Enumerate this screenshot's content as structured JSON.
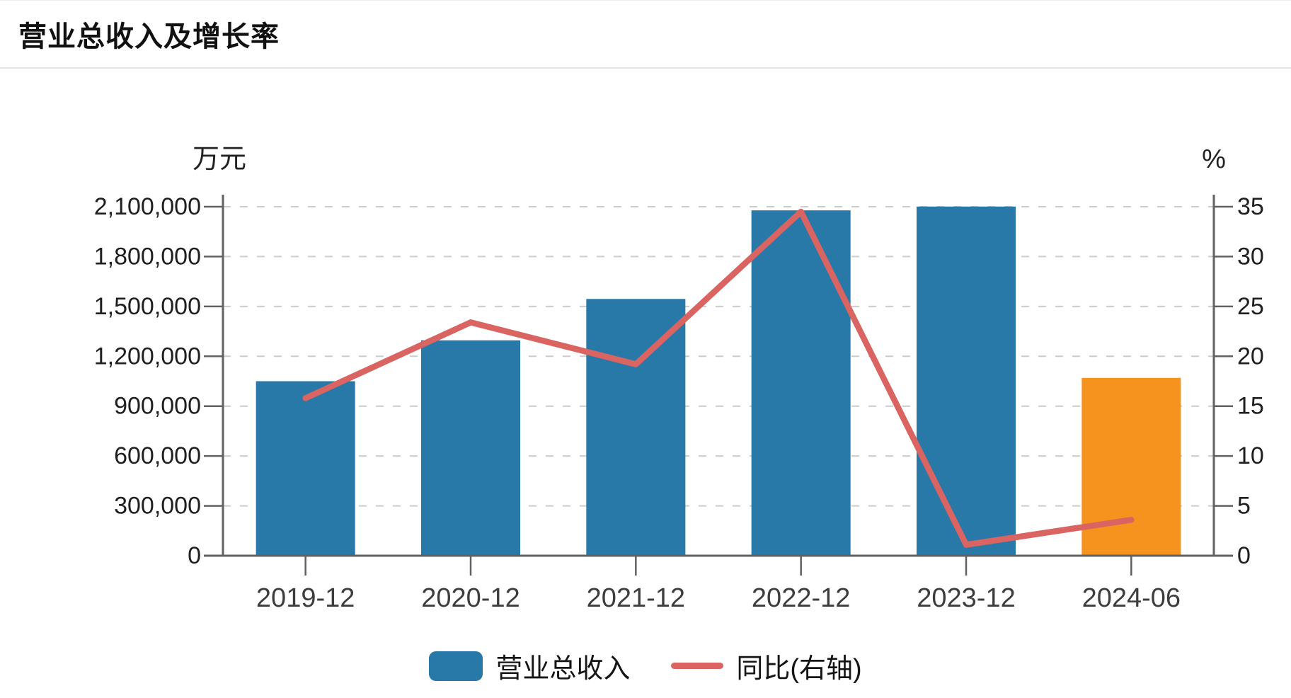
{
  "header": {
    "title": "营业总收入及增长率"
  },
  "chart_data": {
    "type": "bar+line",
    "categories": [
      "2019-12",
      "2020-12",
      "2021-12",
      "2022-12",
      "2023-12",
      "2024-06"
    ],
    "series": [
      {
        "name": "营业总收入",
        "type": "bar",
        "axis": "left",
        "unit": "万元",
        "values": [
          1050000,
          1296000,
          1545000,
          2078000,
          2101000,
          1070000
        ],
        "bar_colors": [
          "#2878a8",
          "#2878a8",
          "#2878a8",
          "#2878a8",
          "#2878a8",
          "#f6921e"
        ]
      },
      {
        "name": "同比(右轴)",
        "type": "line",
        "axis": "right",
        "unit": "%",
        "values": [
          15.8,
          23.4,
          19.2,
          34.5,
          1.1,
          3.6
        ],
        "color": "#d96461"
      }
    ],
    "left_axis": {
      "unit": "万元",
      "min": 0,
      "max": 2100000,
      "tick_step": 300000,
      "tick_labels": [
        "0",
        "300,000",
        "600,000",
        "900,000",
        "1,200,000",
        "1,500,000",
        "1,800,000",
        "2,100,000"
      ]
    },
    "right_axis": {
      "unit": "%",
      "min": 0,
      "max": 35,
      "tick_step": 5,
      "tick_labels": [
        "0",
        "5",
        "10",
        "15",
        "20",
        "25",
        "30",
        "35"
      ]
    },
    "grid": "horizontal-dashed",
    "legend_position": "bottom"
  },
  "style": {
    "axis_line_color": "#616161",
    "grid_color": "#cccccc",
    "tick_label_color": "#1f1f1f",
    "x_label_color": "#3d3d3d",
    "unit_label_color": "#222222"
  }
}
